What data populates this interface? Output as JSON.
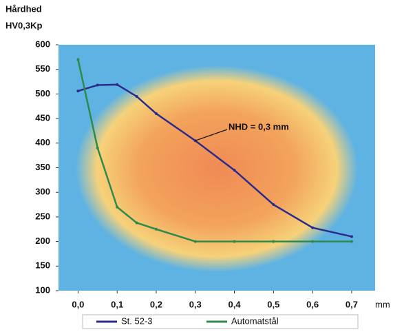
{
  "chart_data": {
    "type": "line",
    "y_label": [
      "Hårdhed",
      "HV0,3Kp"
    ],
    "x_label": "mm",
    "annotation": "NHD = 0,3 mm",
    "annotation_point": [
      0.3,
      405
    ],
    "x": [
      0,
      0.05,
      0.1,
      0.15,
      0.2,
      0.3,
      0.4,
      0.5,
      0.6,
      0.7
    ],
    "series": [
      {
        "name": "St. 52-3",
        "color": "#2b2b8c",
        "values": [
          506,
          518,
          519,
          495,
          460,
          405,
          345,
          275,
          228,
          210
        ]
      },
      {
        "name": "Automatstål",
        "color": "#2e8a4a",
        "values": [
          570,
          390,
          270,
          238,
          225,
          200,
          200,
          200,
          200,
          200
        ]
      }
    ],
    "xlim": [
      -0.05,
      0.76
    ],
    "xticks": [
      {
        "value": 0,
        "label": "0,0"
      },
      {
        "value": 0.1,
        "label": "0,1"
      },
      {
        "value": 0.2,
        "label": "0,2"
      },
      {
        "value": 0.3,
        "label": "0,3"
      },
      {
        "value": 0.4,
        "label": "0,4"
      },
      {
        "value": 0.5,
        "label": "0,5"
      },
      {
        "value": 0.6,
        "label": "0,6"
      },
      {
        "value": 0.7,
        "label": "0,7"
      }
    ],
    "ylim": [
      100,
      600
    ],
    "yticks": [
      100,
      150,
      200,
      250,
      300,
      350,
      400,
      450,
      500,
      550,
      600
    ]
  }
}
